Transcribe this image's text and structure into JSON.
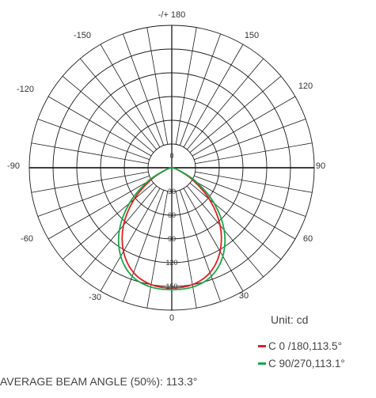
{
  "chart_data": {
    "type": "polar",
    "angle_labels": [
      {
        "angle": 180,
        "text": "-/+ 180"
      },
      {
        "angle": 150,
        "text": "150"
      },
      {
        "angle": -150,
        "text": "-150"
      },
      {
        "angle": 120,
        "text": "120"
      },
      {
        "angle": -120,
        "text": "-120"
      },
      {
        "angle": 90,
        "text": "90"
      },
      {
        "angle": -90,
        "text": "-90"
      },
      {
        "angle": 60,
        "text": "60"
      },
      {
        "angle": -60,
        "text": "-60"
      },
      {
        "angle": 30,
        "text": "30"
      },
      {
        "angle": -30,
        "text": "-30"
      },
      {
        "angle": 0,
        "text": "0"
      }
    ],
    "radial_labels": [
      "0",
      "30",
      "60",
      "90",
      "120",
      "150"
    ],
    "radial_max": 180,
    "unit": "Unit: cd",
    "series": [
      {
        "name": "C 0  /180,113.5°",
        "color": "#e02020",
        "points": [
          [
            -90,
            0
          ],
          [
            -80,
            1
          ],
          [
            -70,
            8
          ],
          [
            -60,
            30
          ],
          [
            -50,
            62
          ],
          [
            -40,
            95
          ],
          [
            -30,
            122
          ],
          [
            -20,
            141
          ],
          [
            -10,
            150
          ],
          [
            0,
            152
          ],
          [
            10,
            150
          ],
          [
            20,
            141
          ],
          [
            30,
            122
          ],
          [
            40,
            95
          ],
          [
            50,
            62
          ],
          [
            60,
            30
          ],
          [
            70,
            8
          ],
          [
            80,
            1
          ],
          [
            90,
            0
          ]
        ]
      },
      {
        "name": "C 90/270,113.1°",
        "color": "#1aa64a",
        "points": [
          [
            -90,
            0
          ],
          [
            -80,
            1
          ],
          [
            -70,
            10
          ],
          [
            -60,
            36
          ],
          [
            -50,
            70
          ],
          [
            -40,
            103
          ],
          [
            -30,
            129
          ],
          [
            -20,
            146
          ],
          [
            -10,
            153
          ],
          [
            0,
            154
          ],
          [
            10,
            153
          ],
          [
            20,
            146
          ],
          [
            30,
            129
          ],
          [
            40,
            103
          ],
          [
            50,
            70
          ],
          [
            60,
            36
          ],
          [
            70,
            10
          ],
          [
            80,
            1
          ],
          [
            90,
            0
          ]
        ]
      }
    ],
    "grid": true
  },
  "footer": {
    "average_beam_angle": "AVERAGE BEAM ANGLE (50%): 113.3°"
  }
}
